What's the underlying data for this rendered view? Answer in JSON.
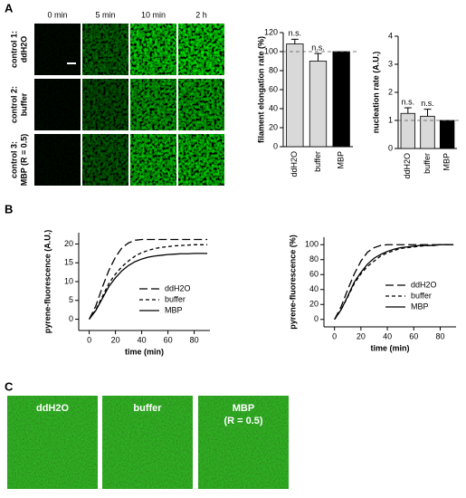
{
  "panel_labels": [
    "A",
    "B",
    "C"
  ],
  "microscopy": {
    "columns": [
      "0 min",
      "5 min",
      "10 min",
      "2 h"
    ],
    "rows": [
      [
        "control 1:",
        "ddH2O"
      ],
      [
        "control 2:",
        "buffer"
      ],
      [
        "control 3:",
        "MBP (R = 0.5)"
      ]
    ]
  },
  "gallery": {
    "labels": [
      [
        "ddH2O"
      ],
      [
        "buffer"
      ],
      [
        "MBP",
        "(R = 0.5)"
      ]
    ]
  },
  "chart_data": [
    {
      "type": "bar",
      "y_label": "filament elongation rate (%)",
      "categories": [
        "ddH2O",
        "buffer",
        "MBP"
      ],
      "values": [
        108,
        90,
        100
      ],
      "errors": [
        5,
        8,
        null
      ],
      "colors": [
        "#d9d9d9",
        "#d9d9d9",
        "#000000"
      ],
      "bar_labels": [
        "n.s.",
        "n.s.",
        null
      ],
      "refline": 100,
      "ylim": [
        0,
        120
      ],
      "yticks": [
        0,
        20,
        40,
        60,
        80,
        100,
        120
      ]
    },
    {
      "type": "bar",
      "y_label": "nucleation rate (A.U.)",
      "categories": [
        "ddH2O",
        "buffer",
        "MBP"
      ],
      "values": [
        1.25,
        1.15,
        1.0
      ],
      "errors": [
        0.2,
        0.25,
        null
      ],
      "colors": [
        "#d9d9d9",
        "#d9d9d9",
        "#000000"
      ],
      "bar_labels": [
        "n.s.",
        "n.s.",
        null
      ],
      "refline": 1,
      "ylim": [
        0,
        4
      ],
      "yticks": [
        0,
        1,
        2,
        3,
        4
      ]
    },
    {
      "type": "line",
      "x_label": "time (min)",
      "y_label": "pyrene-fluorescence (A.U.)",
      "x": [
        0,
        5,
        10,
        15,
        20,
        25,
        30,
        35,
        40,
        45,
        50,
        55,
        60,
        65,
        70,
        75,
        80,
        85,
        90
      ],
      "series": [
        {
          "name": "ddH2O",
          "color": "#000000",
          "dash": "long",
          "values": [
            0,
            3.5,
            8.5,
            13,
            16.5,
            19,
            20.3,
            21,
            21.2,
            21.2,
            21.2,
            21.2,
            21.2,
            21.2,
            21.2,
            21.2,
            21.2,
            21.2,
            21.2
          ]
        },
        {
          "name": "buffer",
          "color": "#000000",
          "dash": "short",
          "values": [
            0,
            2.5,
            6,
            9.5,
            12,
            14,
            15.5,
            16.8,
            17.7,
            18.3,
            18.8,
            19.1,
            19.3,
            19.5,
            19.6,
            19.7,
            19.8,
            19.8,
            19.8
          ]
        },
        {
          "name": "MBP",
          "color": "#000000",
          "dash": "solid",
          "values": [
            0,
            2.3,
            5.5,
            8.7,
            11,
            12.9,
            14.3,
            15.3,
            16,
            16.5,
            16.8,
            17,
            17.2,
            17.3,
            17.4,
            17.4,
            17.5,
            17.5,
            17.5
          ]
        }
      ],
      "xlim": [
        -8,
        92
      ],
      "xticks": [
        0,
        20,
        40,
        60,
        80
      ],
      "ylim": [
        -3,
        23
      ],
      "yticks": [
        0,
        5,
        10,
        15,
        20
      ],
      "legend": "lower right"
    },
    {
      "type": "line",
      "x_label": "time (min)",
      "y_label": "pyrene-fluorescence (%)",
      "x": [
        0,
        5,
        10,
        15,
        20,
        25,
        30,
        35,
        40,
        45,
        50,
        55,
        60,
        65,
        70,
        75,
        80,
        85,
        90
      ],
      "series": [
        {
          "name": "ddH2O",
          "color": "#000000",
          "dash": "long",
          "values": [
            0,
            17,
            40,
            61,
            78,
            90,
            96,
            99,
            100,
            100,
            100,
            100,
            100,
            100,
            100,
            100,
            100,
            100,
            100
          ]
        },
        {
          "name": "buffer",
          "color": "#000000",
          "dash": "short",
          "values": [
            0,
            13,
            30,
            48,
            61,
            71,
            78,
            85,
            89,
            92,
            95,
            96,
            97,
            98,
            99,
            99,
            100,
            100,
            100
          ]
        },
        {
          "name": "MBP",
          "color": "#000000",
          "dash": "solid",
          "values": [
            0,
            13,
            31,
            50,
            63,
            74,
            82,
            87,
            91,
            94,
            96,
            97,
            98,
            99,
            99,
            99,
            100,
            100,
            100
          ]
        }
      ],
      "xlim": [
        -8,
        92
      ],
      "xticks": [
        0,
        20,
        40,
        60,
        80
      ],
      "ylim": [
        -10,
        110
      ],
      "yticks": [
        0,
        20,
        40,
        60,
        80,
        100
      ],
      "legend": "lower right"
    }
  ]
}
